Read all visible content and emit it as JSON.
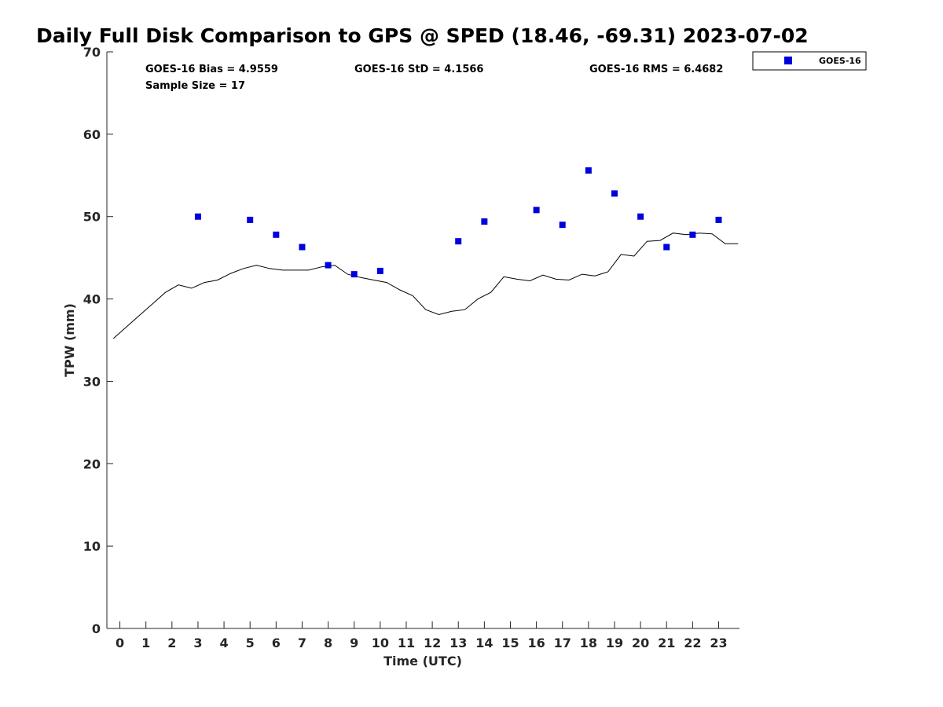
{
  "chart_data": {
    "type": "scatter",
    "title": "Daily Full Disk Comparison to GPS @ SPED (18.46, -69.31) 2023-07-02",
    "xlabel": "Time (UTC)",
    "ylabel": "TPW (mm)",
    "xlim": [
      -0.5,
      23.8
    ],
    "ylim": [
      0,
      70
    ],
    "xticks": [
      0,
      1,
      2,
      3,
      4,
      5,
      6,
      7,
      8,
      9,
      10,
      11,
      12,
      13,
      14,
      15,
      16,
      17,
      18,
      19,
      20,
      21,
      22,
      23
    ],
    "yticks": [
      0,
      10,
      20,
      30,
      40,
      50,
      60,
      70
    ],
    "grid": false,
    "legend_position": "top-right-outside",
    "stats": {
      "bias": "GOES-16 Bias = 4.9559",
      "std": "GOES-16 StD = 4.1566",
      "rms": "GOES-16 RMS = 6.4682",
      "sample": "Sample Size = 17"
    },
    "series": [
      {
        "name": "GOES-16",
        "kind": "scatter",
        "marker": "square",
        "color": "#0000dd",
        "x": [
          3,
          5,
          6,
          7,
          8,
          9,
          10,
          13,
          14,
          16,
          17,
          18,
          19,
          20,
          21,
          22,
          23
        ],
        "y": [
          50.0,
          49.6,
          47.8,
          46.3,
          44.1,
          43.0,
          43.4,
          47.0,
          49.4,
          50.8,
          49.0,
          55.6,
          52.8,
          50.0,
          46.3,
          47.8,
          49.6
        ]
      },
      {
        "kind": "line",
        "color": "#000000",
        "x": [
          -0.25,
          0.25,
          0.75,
          1.25,
          1.75,
          2.25,
          2.75,
          3.25,
          3.75,
          4.25,
          4.75,
          5.25,
          5.75,
          6.25,
          6.75,
          7.25,
          7.75,
          8.25,
          8.75,
          9.25,
          9.75,
          10.25,
          10.75,
          11.25,
          11.75,
          12.25,
          12.75,
          13.25,
          13.75,
          14.25,
          14.75,
          15.25,
          15.75,
          16.25,
          16.75,
          17.25,
          17.75,
          18.25,
          18.75,
          19.25,
          19.75,
          20.25,
          20.75,
          21.25,
          21.75,
          22.25,
          22.75,
          23.25,
          23.75
        ],
        "y": [
          35.2,
          36.6,
          38.0,
          39.4,
          40.8,
          41.7,
          41.3,
          42.0,
          42.3,
          43.1,
          43.7,
          44.1,
          43.7,
          43.5,
          43.5,
          43.5,
          43.9,
          44.1,
          43.0,
          42.6,
          42.3,
          42.0,
          41.1,
          40.4,
          38.7,
          38.1,
          38.5,
          38.7,
          40.0,
          40.8,
          42.7,
          42.4,
          42.2,
          42.9,
          42.4,
          42.3,
          43.0,
          42.8,
          43.3,
          45.4,
          45.2,
          47.0,
          47.1,
          48.0,
          47.8,
          48.0,
          47.9,
          46.7,
          46.7
        ]
      }
    ]
  }
}
